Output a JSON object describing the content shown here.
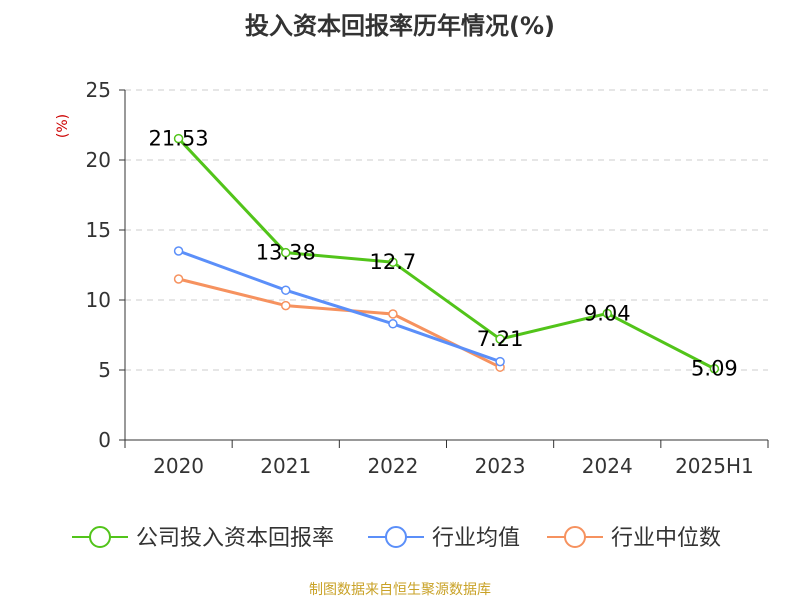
{
  "chart_data": {
    "type": "line",
    "title": "投入资本回报率历年情况(%)",
    "ylabel": "(%)",
    "categories": [
      "2020",
      "2021",
      "2022",
      "2023",
      "2024",
      "2025H1"
    ],
    "ylim": [
      0,
      25
    ],
    "yticks": [
      0,
      5,
      10,
      15,
      20,
      25
    ],
    "grid": true,
    "legend_position": "bottom",
    "series": [
      {
        "name": "公司投入资本回报率",
        "color": "#52c41a",
        "values": [
          21.53,
          13.38,
          12.7,
          7.21,
          9.04,
          5.09
        ],
        "labels": [
          "21.53",
          "13.38",
          "12.7",
          "7.21",
          "9.04",
          "5.09"
        ]
      },
      {
        "name": "行业均值",
        "color": "#5b8ff9",
        "values": [
          13.5,
          10.7,
          8.3,
          5.6,
          null,
          null
        ]
      },
      {
        "name": "行业中位数",
        "color": "#f6925f",
        "values": [
          11.5,
          9.6,
          9.0,
          5.2,
          null,
          null
        ]
      }
    ],
    "source_note": "制图数据来自恒生聚源数据库",
    "colors": {
      "axis": "#333333",
      "grid": "#cccccc",
      "ylabel": "#cc0000",
      "source": "#c9a227"
    }
  }
}
